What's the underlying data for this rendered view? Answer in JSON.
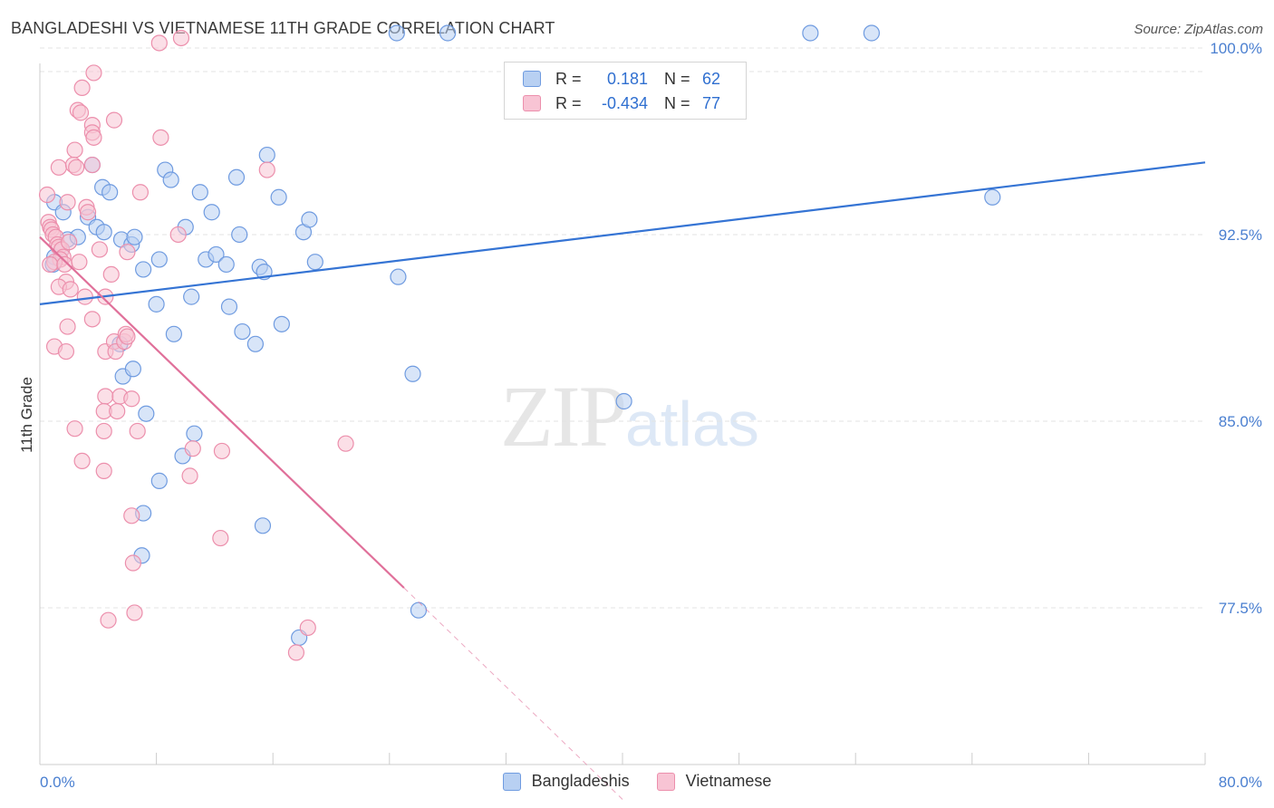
{
  "title": "BANGLADESHI VS VIETNAMESE 11TH GRADE CORRELATION CHART",
  "source": "Source: ZipAtlas.com",
  "watermark": {
    "zip": "ZIP",
    "atlas": "atlas"
  },
  "legend": {
    "rows": [
      {
        "r_label": "R =",
        "r_value": "0.181",
        "n_label": "N =",
        "n_value": "62"
      },
      {
        "r_label": "R =",
        "r_value": "-0.434",
        "n_label": "N =",
        "n_value": "77"
      }
    ]
  },
  "bottom_legend": [
    "Bangladeshis",
    "Vietnamese"
  ],
  "colors": {
    "blue_fill": "#b8d0f2",
    "blue_stroke": "#6f9be0",
    "blue_line": "#3574d4",
    "pink_fill": "#f8c4d4",
    "pink_stroke": "#ec8fac",
    "pink_line": "#e0709a",
    "grid": "#e3e3e3",
    "tick_text": "#4a7fd0"
  },
  "chart_data": {
    "type": "scatter",
    "title": "BANGLADESHI VS VIETNAMESE 11TH GRADE CORRELATION CHART",
    "xlabel": "",
    "ylabel": "11th Grade",
    "xlim": [
      0,
      80
    ],
    "ylim": [
      71.2,
      101.2
    ],
    "x_tick_labels": [
      "0.0%",
      "80.0%"
    ],
    "y_ticks": [
      77.5,
      85.0,
      92.5,
      100.0
    ],
    "y_tick_labels": [
      "77.5%",
      "85.0%",
      "92.5%",
      "100.0%"
    ],
    "grid": true,
    "legend_position": "top-center",
    "series": [
      {
        "name": "Bangladeshis",
        "r": 0.181,
        "n": 62,
        "trend": {
          "x": [
            0,
            80
          ],
          "y": [
            89.7,
            95.4
          ]
        },
        "points": [
          [
            24.5,
            100.6
          ],
          [
            28.0,
            100.6
          ],
          [
            52.9,
            100.6
          ],
          [
            57.1,
            100.6
          ],
          [
            1.0,
            93.8
          ],
          [
            1.6,
            93.4
          ],
          [
            1.9,
            92.3
          ],
          [
            2.6,
            92.4
          ],
          [
            3.3,
            93.2
          ],
          [
            3.9,
            92.8
          ],
          [
            4.4,
            92.6
          ],
          [
            3.6,
            95.3
          ],
          [
            4.3,
            94.4
          ],
          [
            4.8,
            94.2
          ],
          [
            5.6,
            92.3
          ],
          [
            6.3,
            92.1
          ],
          [
            6.5,
            92.4
          ],
          [
            7.1,
            91.1
          ],
          [
            8.0,
            89.7
          ],
          [
            8.2,
            91.5
          ],
          [
            8.6,
            95.1
          ],
          [
            9.0,
            94.7
          ],
          [
            9.2,
            88.5
          ],
          [
            10.0,
            92.8
          ],
          [
            10.4,
            90.0
          ],
          [
            11.0,
            94.2
          ],
          [
            11.4,
            91.5
          ],
          [
            11.8,
            93.4
          ],
          [
            12.1,
            91.7
          ],
          [
            12.8,
            91.3
          ],
          [
            13.0,
            89.6
          ],
          [
            13.5,
            94.8
          ],
          [
            13.7,
            92.5
          ],
          [
            13.9,
            88.6
          ],
          [
            14.8,
            88.1
          ],
          [
            15.1,
            91.2
          ],
          [
            15.4,
            91.0
          ],
          [
            15.6,
            95.7
          ],
          [
            16.4,
            94.0
          ],
          [
            16.6,
            88.9
          ],
          [
            18.1,
            92.6
          ],
          [
            18.5,
            93.1
          ],
          [
            18.9,
            91.4
          ],
          [
            24.6,
            90.8
          ],
          [
            25.6,
            86.9
          ],
          [
            5.5,
            88.1
          ],
          [
            5.7,
            86.8
          ],
          [
            6.4,
            87.1
          ],
          [
            7.3,
            85.3
          ],
          [
            8.2,
            82.6
          ],
          [
            7.1,
            81.3
          ],
          [
            7.0,
            79.6
          ],
          [
            10.6,
            84.5
          ],
          [
            9.8,
            83.6
          ],
          [
            15.3,
            80.8
          ],
          [
            17.8,
            76.3
          ],
          [
            26.0,
            77.4
          ],
          [
            40.1,
            85.8
          ],
          [
            65.4,
            94.0
          ],
          [
            1.0,
            91.6
          ],
          [
            1.5,
            91.9
          ],
          [
            0.9,
            91.3
          ]
        ]
      },
      {
        "name": "Vietnamese",
        "r": -0.434,
        "n": 77,
        "trend": {
          "x": [
            0,
            25
          ],
          "y": [
            92.4,
            78.3
          ]
        },
        "trend_extension": {
          "x": [
            25,
            40
          ],
          "y": [
            78.3,
            69.8
          ]
        },
        "points": [
          [
            8.2,
            100.2
          ],
          [
            9.7,
            100.4
          ],
          [
            3.7,
            99.0
          ],
          [
            2.9,
            98.4
          ],
          [
            2.6,
            97.5
          ],
          [
            2.8,
            97.4
          ],
          [
            3.6,
            96.9
          ],
          [
            5.1,
            97.1
          ],
          [
            3.6,
            96.6
          ],
          [
            3.7,
            96.4
          ],
          [
            8.3,
            96.4
          ],
          [
            2.4,
            95.9
          ],
          [
            1.3,
            95.2
          ],
          [
            2.3,
            95.3
          ],
          [
            3.6,
            95.3
          ],
          [
            2.5,
            95.2
          ],
          [
            15.6,
            95.1
          ],
          [
            0.5,
            94.1
          ],
          [
            1.9,
            93.8
          ],
          [
            3.2,
            93.6
          ],
          [
            3.3,
            93.4
          ],
          [
            6.9,
            94.2
          ],
          [
            0.6,
            93.0
          ],
          [
            0.7,
            92.8
          ],
          [
            0.8,
            92.7
          ],
          [
            0.9,
            92.5
          ],
          [
            1.1,
            92.4
          ],
          [
            1.2,
            92.1
          ],
          [
            1.3,
            92.0
          ],
          [
            1.5,
            91.9
          ],
          [
            1.6,
            91.6
          ],
          [
            1.4,
            91.5
          ],
          [
            1.0,
            91.4
          ],
          [
            0.7,
            91.3
          ],
          [
            1.7,
            91.3
          ],
          [
            2.0,
            92.2
          ],
          [
            2.7,
            91.4
          ],
          [
            1.8,
            90.6
          ],
          [
            1.3,
            90.4
          ],
          [
            2.1,
            90.3
          ],
          [
            4.1,
            91.9
          ],
          [
            4.9,
            90.9
          ],
          [
            6.0,
            91.8
          ],
          [
            9.5,
            92.5
          ],
          [
            3.1,
            90.0
          ],
          [
            4.5,
            90.0
          ],
          [
            3.6,
            89.1
          ],
          [
            1.9,
            88.8
          ],
          [
            1.0,
            88.0
          ],
          [
            1.8,
            87.8
          ],
          [
            4.5,
            87.8
          ],
          [
            5.1,
            88.2
          ],
          [
            5.2,
            87.8
          ],
          [
            5.8,
            88.2
          ],
          [
            5.9,
            88.5
          ],
          [
            6.0,
            88.4
          ],
          [
            4.5,
            86.0
          ],
          [
            5.5,
            86.0
          ],
          [
            6.3,
            85.9
          ],
          [
            4.4,
            85.4
          ],
          [
            5.3,
            85.4
          ],
          [
            2.4,
            84.7
          ],
          [
            4.4,
            84.6
          ],
          [
            6.7,
            84.6
          ],
          [
            2.9,
            83.4
          ],
          [
            4.4,
            83.0
          ],
          [
            10.5,
            83.9
          ],
          [
            12.5,
            83.8
          ],
          [
            10.3,
            82.8
          ],
          [
            21.0,
            84.1
          ],
          [
            6.3,
            81.2
          ],
          [
            12.4,
            80.3
          ],
          [
            6.4,
            79.3
          ],
          [
            4.7,
            77.0
          ],
          [
            6.5,
            77.3
          ],
          [
            18.4,
            76.7
          ],
          [
            17.6,
            75.7
          ]
        ]
      }
    ]
  }
}
